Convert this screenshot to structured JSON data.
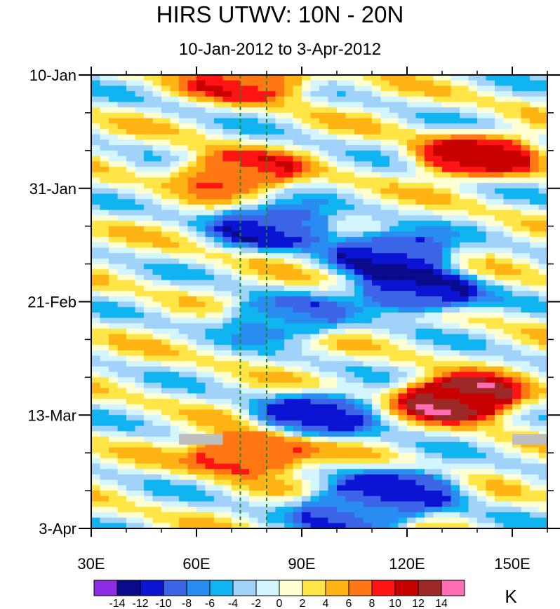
{
  "chart_data": {
    "type": "heatmap",
    "title": "HIRS UTWV: 10N - 20N",
    "subtitle": "10-Jan-2012 to 3-Apr-2012",
    "x_axis": {
      "range": [
        30,
        160
      ],
      "ticks": [
        30,
        60,
        90,
        120,
        150
      ],
      "tick_labels": [
        "30E",
        "60E",
        "90E",
        "120E",
        "150E"
      ],
      "minor_ticks": [
        40,
        50,
        70,
        80,
        100,
        110,
        130,
        140,
        160
      ]
    },
    "y_axis": {
      "range_days": [
        0,
        84
      ],
      "ticks": [
        0,
        21,
        42,
        63,
        84
      ],
      "tick_labels": [
        "10-Jan",
        "31-Jan",
        "21-Feb",
        "13-Mar",
        "3-Apr"
      ],
      "reversed": true
    },
    "reference_lines": [
      72.5,
      80
    ],
    "colorbar": {
      "unit": "K",
      "levels": [
        -14,
        -12,
        -10,
        -8,
        -6,
        -4,
        -2,
        0,
        2,
        4,
        6,
        8,
        10,
        12,
        14
      ],
      "level_labels": [
        "-14",
        "-12",
        "-10",
        "-8",
        "-6",
        "-4",
        "-2",
        "0",
        "2",
        "4",
        "6",
        "8",
        "10",
        "12",
        "14"
      ],
      "colors": [
        "#8c2ce6",
        "#0a0a8c",
        "#0a14d2",
        "#3c64e6",
        "#288cf0",
        "#10b4f0",
        "#a0d2fa",
        "#d2f5ff",
        "#ffffd2",
        "#ffe646",
        "#ffb414",
        "#ff7814",
        "#ff1414",
        "#c80000",
        "#9c2828",
        "#ff6eb4"
      ]
    },
    "features": [
      {
        "lon": 75,
        "day": 1,
        "value": 9
      },
      {
        "lon": 140,
        "day": 15,
        "value": 11
      },
      {
        "lon": 72,
        "day": 18,
        "value": 9
      },
      {
        "lon": 82,
        "day": 28,
        "value": -11
      },
      {
        "lon": 115,
        "day": 33,
        "value": -12
      },
      {
        "lon": 123,
        "day": 40,
        "value": -13
      },
      {
        "lon": 85,
        "day": 45,
        "value": -8
      },
      {
        "lon": 135,
        "day": 60,
        "value": 15
      },
      {
        "lon": 95,
        "day": 63,
        "value": -11
      },
      {
        "lon": 75,
        "day": 70,
        "value": 10
      },
      {
        "lon": 118,
        "day": 77,
        "value": -11
      },
      {
        "lon": 105,
        "day": 81,
        "value": -10
      }
    ]
  }
}
